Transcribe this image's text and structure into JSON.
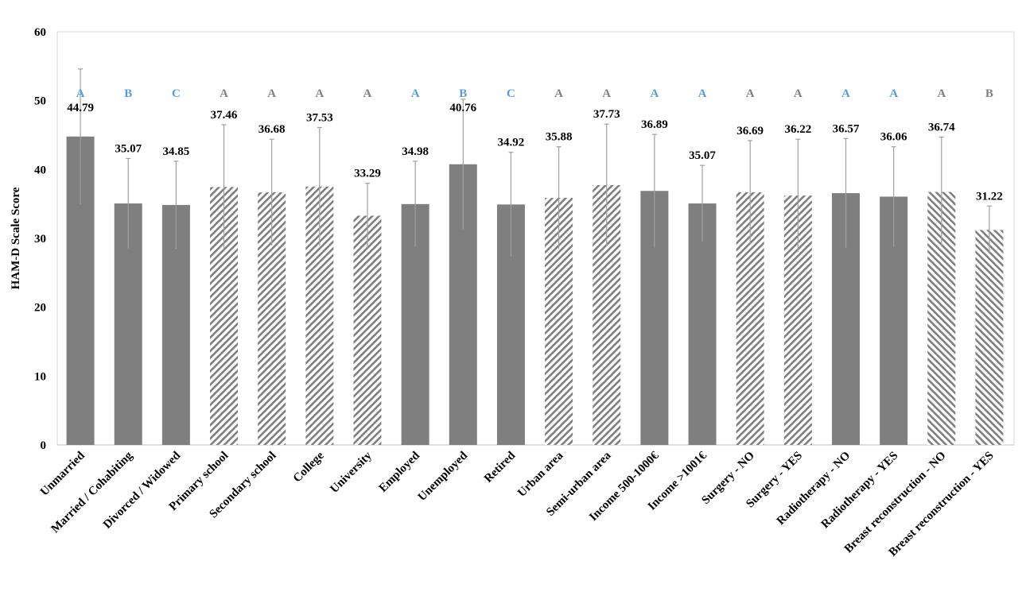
{
  "chart_data": {
    "type": "bar",
    "title": "",
    "xlabel": "",
    "ylabel": "HAM-D Scale Score",
    "ylim": [
      0,
      60
    ],
    "yticks": [
      0,
      10,
      20,
      30,
      40,
      50,
      60
    ],
    "grid": false,
    "categories": [
      "Unmarried",
      "Married / Cohabiting",
      "Divorced / Widowed",
      "Primary school",
      "Secondary school",
      "College",
      "University",
      "Employed",
      "Unemployed",
      "Retired",
      "Urban area",
      "Semi-urban area",
      "Income 500-1000€",
      "Income >1001€",
      "Surgery - NO",
      "Surgery - YES",
      "Radiotherapy - NO",
      "Radiotherapy - YES",
      "Breast reconstruction - NO",
      "Breast reconstruction - YES"
    ],
    "values": [
      44.79,
      35.07,
      34.85,
      37.46,
      36.68,
      37.53,
      33.29,
      34.98,
      40.76,
      34.92,
      35.88,
      37.73,
      36.89,
      35.07,
      36.69,
      36.22,
      36.57,
      36.06,
      36.74,
      31.22
    ],
    "value_labels": [
      "44.79",
      "35.07",
      "34.85",
      "37.46",
      "36.68",
      "37.53",
      "33.29",
      "34.98",
      "40.76",
      "34.92",
      "35.88",
      "37.73",
      "36.89",
      "35.07",
      "36.69",
      "36.22",
      "36.57",
      "36.06",
      "36.74",
      "31.22"
    ],
    "error_upper": [
      54.6,
      41.6,
      41.2,
      46.5,
      44.4,
      46.1,
      38.0,
      41.2,
      50.2,
      42.5,
      43.3,
      46.6,
      45.1,
      40.6,
      44.2,
      44.4,
      44.5,
      43.3,
      44.7,
      34.7
    ],
    "group_letters": [
      "A",
      "B",
      "C",
      "A",
      "A",
      "A",
      "A",
      "A",
      "B",
      "C",
      "A",
      "A",
      "A",
      "A",
      "A",
      "A",
      "A",
      "A",
      "A",
      "B"
    ],
    "letter_colors": [
      "#5b9bd5",
      "#5b9bd5",
      "#5b9bd5",
      "#808080",
      "#808080",
      "#808080",
      "#808080",
      "#5b9bd5",
      "#5b9bd5",
      "#5b9bd5",
      "#808080",
      "#808080",
      "#5b9bd5",
      "#5b9bd5",
      "#808080",
      "#808080",
      "#5b9bd5",
      "#5b9bd5",
      "#808080",
      "#808080"
    ],
    "fill_patterns": [
      "solid",
      "solid",
      "solid",
      "hatch-back",
      "hatch-back",
      "hatch-back",
      "hatch-back",
      "solid",
      "solid",
      "solid",
      "hatch-back",
      "hatch-back",
      "solid",
      "solid",
      "hatch-back",
      "hatch-back",
      "solid",
      "solid",
      "hatch-forward",
      "hatch-forward"
    ],
    "colors": {
      "bar": "#7f7f7f",
      "error_bar": "#a0a0a0",
      "axis": "#d9d9d9"
    }
  }
}
